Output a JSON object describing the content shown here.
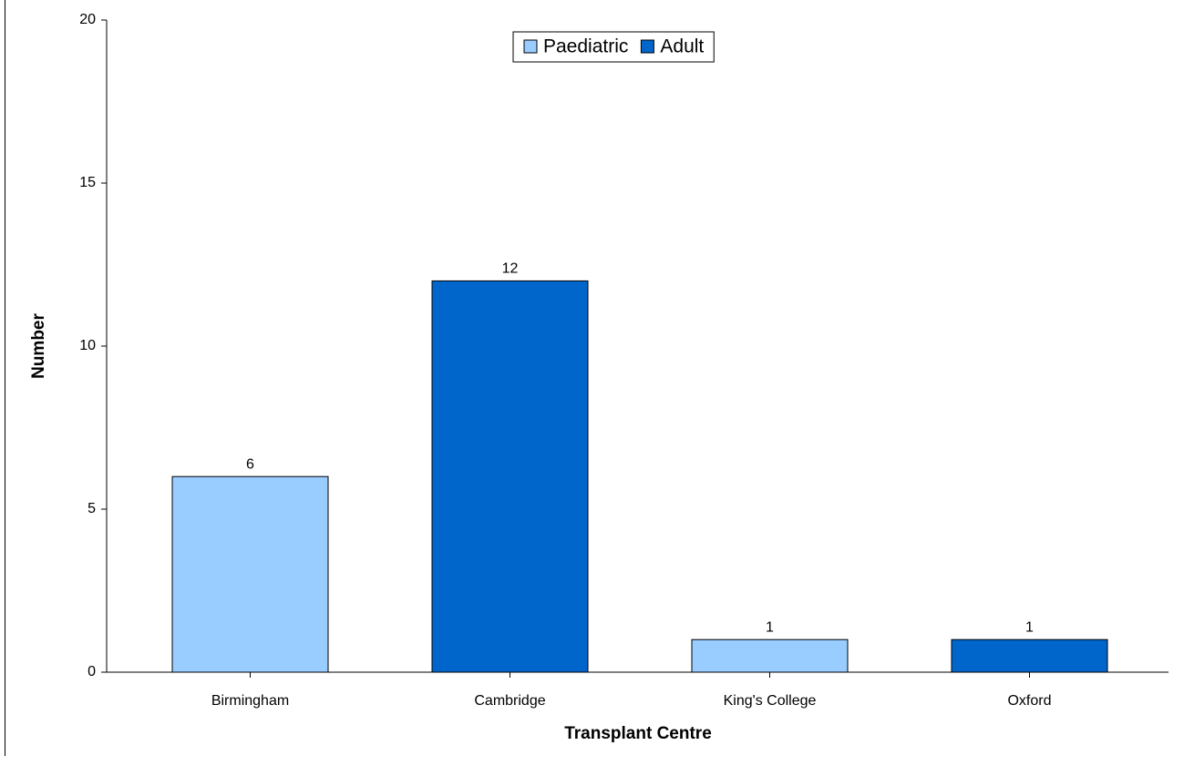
{
  "chart_data": {
    "type": "bar",
    "categories": [
      "Birmingham",
      "Cambridge",
      "King's College",
      "Oxford"
    ],
    "series": [
      {
        "name": "Paediatric",
        "color": "#99ccff",
        "values": [
          6,
          null,
          1,
          null
        ]
      },
      {
        "name": "Adult",
        "color": "#0066cc",
        "values": [
          null,
          12,
          null,
          1
        ]
      }
    ],
    "ylim": [
      0,
      20
    ],
    "yticks": [
      0,
      5,
      10,
      15,
      20
    ],
    "xlabel": "Transplant Centre",
    "ylabel": "Number",
    "legend": "top",
    "grid": false,
    "data_labels": true
  }
}
